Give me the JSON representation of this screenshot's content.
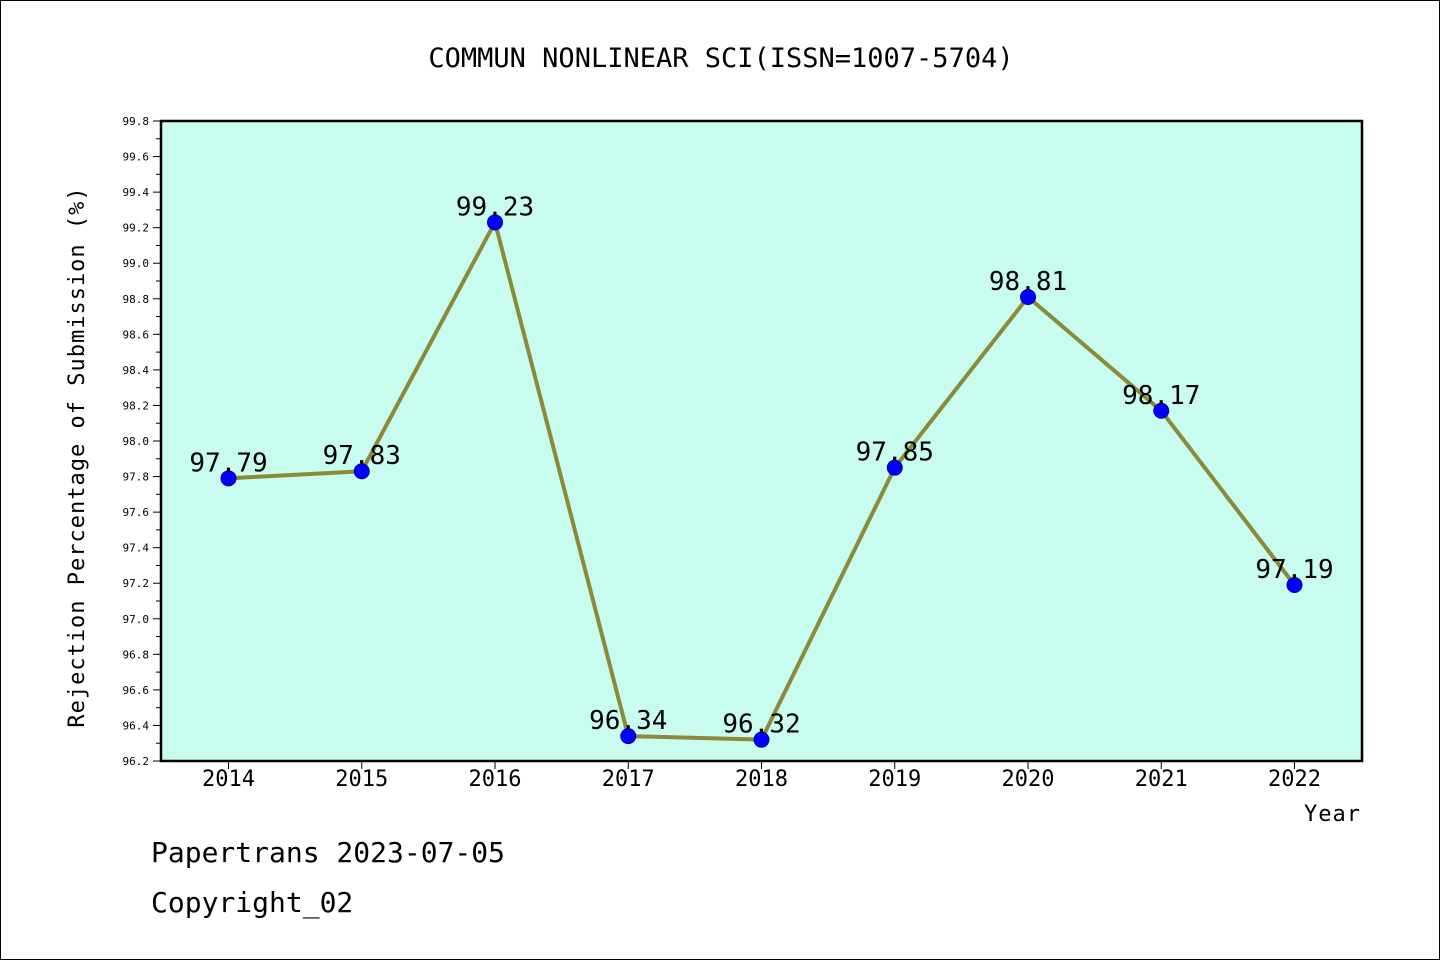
{
  "chart_data": {
    "type": "line",
    "title": "COMMUN NONLINEAR SCI(ISSN=1007-5704)",
    "xlabel": "Year",
    "ylabel": "Rejection Percentage of Submission (%)",
    "categories": [
      "2014",
      "2015",
      "2016",
      "2017",
      "2018",
      "2019",
      "2020",
      "2021",
      "2022"
    ],
    "values": [
      97.79,
      97.83,
      99.23,
      96.34,
      96.32,
      97.85,
      98.81,
      98.17,
      97.19
    ],
    "data_labels": [
      "97.79",
      "97.83",
      "99.23",
      "96.34",
      "96.32",
      "97.85",
      "98.81",
      "98.17",
      "97.19"
    ],
    "ylim": [
      96.2,
      99.8
    ],
    "yticks": [
      "96.2",
      "96.4",
      "96.6",
      "96.8",
      "97.0",
      "97.2",
      "97.4",
      "97.6",
      "97.8",
      "98.0",
      "98.2",
      "98.4",
      "98.6",
      "98.8",
      "99.0",
      "99.2",
      "99.4",
      "99.6",
      "99.8"
    ],
    "grid": false,
    "colors": {
      "plot_background": "#c8fcee",
      "line": "#8b8a3a",
      "marker": "#0000ff",
      "axes": "#000000"
    }
  },
  "footer": {
    "line1": "Papertrans 2023-07-05",
    "line2": "Copyright_02"
  }
}
